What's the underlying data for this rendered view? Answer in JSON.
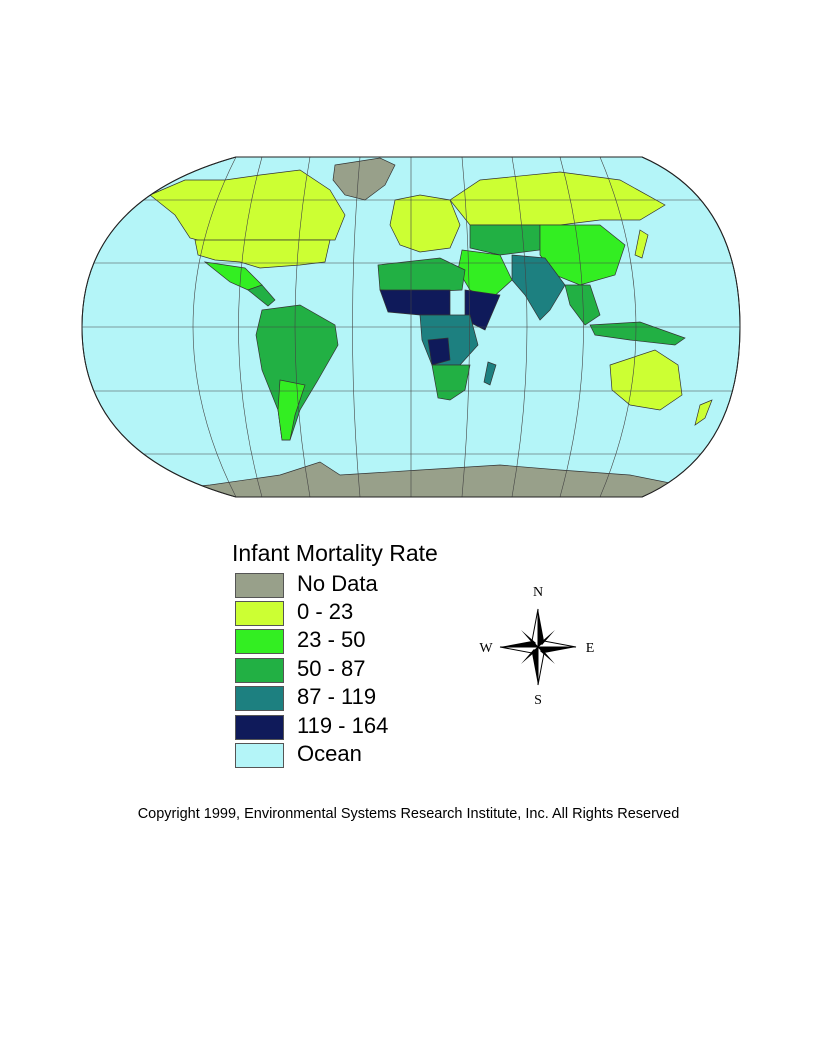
{
  "legend": {
    "title": "Infant Mortality Rate",
    "items": [
      {
        "label": "No Data",
        "color": "#98a08a"
      },
      {
        "label": "0 - 23",
        "color": "#ccff33"
      },
      {
        "label": "23 - 50",
        "color": "#33ee22"
      },
      {
        "label": "50 - 87",
        "color": "#22b044"
      },
      {
        "label": "87 - 119",
        "color": "#1d8080"
      },
      {
        "label": "119 - 164",
        "color": "#0f1a5a"
      },
      {
        "label": "Ocean",
        "color": "#b4f5f8"
      }
    ]
  },
  "compass": {
    "n": "N",
    "s": "S",
    "e": "E",
    "w": "W"
  },
  "copyright": "Copyright 1999, Environmental Systems Research Institute, Inc. All Rights Reserved"
}
